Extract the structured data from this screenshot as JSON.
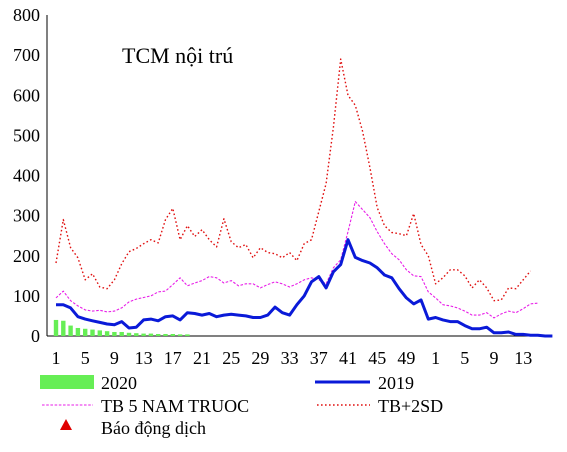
{
  "chart_data": {
    "type": "line",
    "title": "TCM nội trú",
    "xlabel": "",
    "ylabel": "",
    "ylim": [
      0,
      800
    ],
    "yticks": [
      0,
      100,
      200,
      300,
      400,
      500,
      600,
      700,
      800
    ],
    "grid": false,
    "legend_position": "bottom",
    "x_tick_labels": [
      "1",
      "5",
      "9",
      "13",
      "17",
      "21",
      "25",
      "29",
      "33",
      "37",
      "41",
      "45",
      "49",
      "1",
      "5",
      "9",
      "13"
    ],
    "colors": {
      "2020": "#66ee55",
      "2019": "#0a1ad8",
      "tb5": "#e81ee8",
      "tb2sd": "#e01010",
      "alert": "#e00000"
    },
    "series": [
      {
        "name": "2020",
        "kind": "bar",
        "values": [
          40,
          38,
          26,
          20,
          18,
          16,
          14,
          12,
          10,
          10,
          8,
          7,
          6,
          6,
          5,
          5,
          5,
          4,
          4
        ]
      },
      {
        "name": "2019",
        "kind": "line",
        "values": [
          78,
          78,
          70,
          48,
          42,
          38,
          34,
          30,
          28,
          36,
          20,
          22,
          40,
          42,
          38,
          48,
          50,
          40,
          58,
          56,
          52,
          56,
          48,
          52,
          54,
          52,
          50,
          46,
          46,
          52,
          72,
          58,
          52,
          78,
          100,
          135,
          148,
          120,
          160,
          178,
          240,
          196,
          188,
          182,
          170,
          152,
          145,
          118,
          95,
          80,
          90,
          42,
          46,
          40,
          36,
          36,
          26,
          18,
          18,
          22,
          8,
          8,
          10,
          4,
          4,
          2,
          2,
          0,
          0
        ]
      },
      {
        "name": "TB 5 NAM TRUOC",
        "kind": "line",
        "values": [
          95,
          112,
          88,
          75,
          65,
          62,
          64,
          60,
          62,
          70,
          85,
          92,
          96,
          100,
          110,
          112,
          128,
          145,
          125,
          132,
          138,
          148,
          145,
          132,
          138,
          125,
          130,
          130,
          120,
          128,
          135,
          130,
          122,
          130,
          140,
          145,
          140,
          130,
          170,
          190,
          260,
          335,
          315,
          295,
          260,
          230,
          205,
          190,
          165,
          150,
          148,
          110,
          95,
          78,
          75,
          70,
          62,
          52,
          52,
          58,
          45,
          55,
          62,
          58,
          68,
          80,
          82
        ]
      },
      {
        "name": "TB+2SD",
        "kind": "line",
        "values": [
          182,
          290,
          220,
          195,
          140,
          155,
          122,
          118,
          140,
          180,
          210,
          218,
          230,
          240,
          232,
          290,
          318,
          240,
          275,
          248,
          265,
          240,
          222,
          292,
          235,
          220,
          228,
          195,
          220,
          208,
          205,
          195,
          208,
          188,
          230,
          240,
          310,
          380,
          520,
          690,
          600,
          575,
          510,
          420,
          320,
          275,
          258,
          255,
          250,
          305,
          228,
          200,
          130,
          145,
          165,
          165,
          150,
          120,
          140,
          120,
          88,
          90,
          120,
          118,
          140,
          162
        ]
      },
      {
        "name": "Báo động dịch",
        "kind": "marker",
        "values": []
      }
    ]
  }
}
